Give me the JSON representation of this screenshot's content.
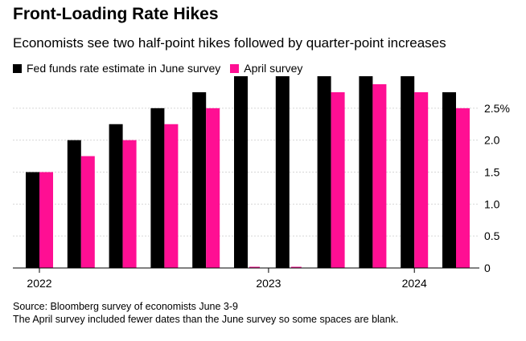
{
  "header": {
    "title": "Front-Loading Rate Hikes",
    "subtitle": "Economists see two half-point hikes followed by quarter-point increases"
  },
  "legend": [
    {
      "label": "Fed funds rate estimate in June survey",
      "color": "#000000"
    },
    {
      "label": "April survey",
      "color": "#ff0f93"
    }
  ],
  "footer": {
    "source": "Source: Bloomberg survey of economists June 3-9",
    "note": "The April survey included fewer dates than the June survey so some spaces are blank."
  },
  "chart_data": {
    "type": "bar",
    "categories": [
      "",
      "",
      "",
      "",
      "",
      "",
      "",
      "",
      "",
      "",
      ""
    ],
    "x_tick_labels": [
      {
        "label": "2022",
        "index": 0
      },
      {
        "label": "2023",
        "index": 5.5
      },
      {
        "label": "2024",
        "index": 9
      }
    ],
    "series": [
      {
        "name": "Fed funds rate estimate in June survey",
        "color": "#000000",
        "values": [
          1.5,
          2.0,
          2.25,
          2.5,
          2.75,
          3.0,
          3.0,
          3.0,
          3.0,
          3.0,
          2.75
        ]
      },
      {
        "name": "April survey",
        "color": "#ff0f93",
        "values": [
          1.5,
          1.75,
          2.0,
          2.25,
          2.5,
          0.0,
          0.0,
          2.75,
          2.875,
          2.75,
          2.5
        ]
      }
    ],
    "yticks": [
      {
        "value": 0,
        "label": "0"
      },
      {
        "value": 0.5,
        "label": "0.5"
      },
      {
        "value": 1.0,
        "label": "1.0"
      },
      {
        "value": 1.5,
        "label": "1.5"
      },
      {
        "value": 2.0,
        "label": "2.0"
      },
      {
        "value": 2.5,
        "label": "2.5%"
      }
    ],
    "ylim": [
      0,
      3.0
    ],
    "grid": true
  }
}
